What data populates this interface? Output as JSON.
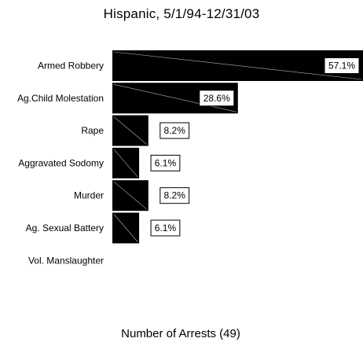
{
  "chart_data": {
    "type": "bar",
    "orientation": "horizontal",
    "title": "Hispanic, 5/1/94-12/31/03",
    "xlabel": "Number of Arrests (49)",
    "ylabel": "",
    "categories": [
      "Armed Robbery",
      "Ag.Child Molestation",
      "Rape",
      "Aggravated Sodomy",
      "Murder",
      "Ag. Sexual Battery",
      "Vol. Manslaughter"
    ],
    "values": [
      57.1,
      28.6,
      8.2,
      6.1,
      8.2,
      6.1,
      0
    ],
    "data_labels": [
      "57.1%",
      "28.6%",
      "8.2%",
      "6.1%",
      "8.2%",
      "6.1%",
      ""
    ],
    "value_unit": "%",
    "xlim": [
      0,
      57.1
    ],
    "grid": false,
    "legend": "none",
    "colors": {
      "bar": "#000000",
      "bar_diagonal": "#ffffff",
      "label_box_border": "#000000",
      "label_box_fill": "#ffffff"
    }
  }
}
